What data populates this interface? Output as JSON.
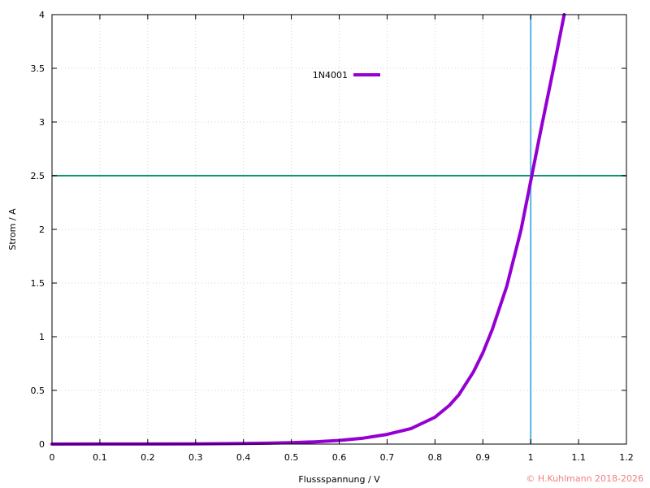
{
  "chart_data": {
    "type": "line",
    "xlabel": "Flussspannung / V",
    "ylabel": "Strom / A",
    "xlim": [
      0,
      1.2
    ],
    "ylim": [
      0,
      4
    ],
    "x_ticks": [
      "0",
      "0.1",
      "0.2",
      "0.3",
      "0.4",
      "0.5",
      "0.6",
      "0.7",
      "0.8",
      "0.9",
      "1",
      "1.1",
      "1.2"
    ],
    "y_ticks": [
      "0",
      "0.5",
      "1",
      "1.5",
      "2",
      "2.5",
      "3",
      "3.5",
      "4"
    ],
    "grid": true,
    "legend_position": "top-center",
    "series": [
      {
        "name": "1N4001",
        "color": "#9400d3",
        "x": [
          0,
          0.1,
          0.2,
          0.3,
          0.4,
          0.45,
          0.5,
          0.55,
          0.6,
          0.65,
          0.7,
          0.75,
          0.8,
          0.83,
          0.85,
          0.88,
          0.9,
          0.92,
          0.95,
          0.98,
          1.0,
          1.02,
          1.05,
          1.07
        ],
        "y": [
          0,
          0.0005,
          0.001,
          0.002,
          0.005,
          0.008,
          0.013,
          0.021,
          0.034,
          0.055,
          0.09,
          0.145,
          0.25,
          0.36,
          0.46,
          0.67,
          0.85,
          1.07,
          1.47,
          2.0,
          2.45,
          2.9,
          3.55,
          4.0
        ]
      }
    ],
    "reference_lines": [
      {
        "orientation": "horizontal",
        "value": 2.5,
        "color": "#109475"
      },
      {
        "orientation": "vertical",
        "value": 1.0,
        "color": "#56b4e9"
      }
    ]
  },
  "copyright": {
    "text": "© H.Kuhlmann 2018-2026",
    "color": "#f08080"
  }
}
